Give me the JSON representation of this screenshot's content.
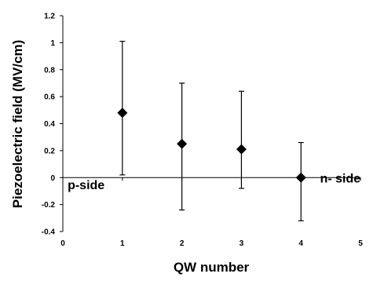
{
  "chart_data": {
    "type": "scatter",
    "xlabel": "QW number",
    "ylabel": "Piezoelectric field (MV/cm)",
    "xlim": [
      0,
      5
    ],
    "ylim": [
      -0.4,
      1.2
    ],
    "x_ticks": [
      "0",
      "1",
      "2",
      "3",
      "4",
      "5"
    ],
    "y_ticks": [
      "-0.4",
      "-0.2",
      "0",
      "0.2",
      "0.4",
      "0.6",
      "0.8",
      "1",
      "1.2"
    ],
    "grid": false,
    "series": [
      {
        "marker": "diamond",
        "color": "#000000",
        "points": [
          {
            "x": 1,
            "y": 0.48,
            "err_low": 0.02,
            "err_high": 1.01
          },
          {
            "x": 2,
            "y": 0.25,
            "err_low": -0.24,
            "err_high": 0.7
          },
          {
            "x": 3,
            "y": 0.21,
            "err_low": -0.08,
            "err_high": 0.64
          },
          {
            "x": 4,
            "y": 0.0,
            "err_low": -0.32,
            "err_high": 0.26
          }
        ]
      }
    ],
    "annotations": [
      {
        "text": "p-side",
        "x": 0.08,
        "y": -0.05
      },
      {
        "text": "n- side",
        "x": 4.32,
        "y": 0.0
      }
    ]
  }
}
